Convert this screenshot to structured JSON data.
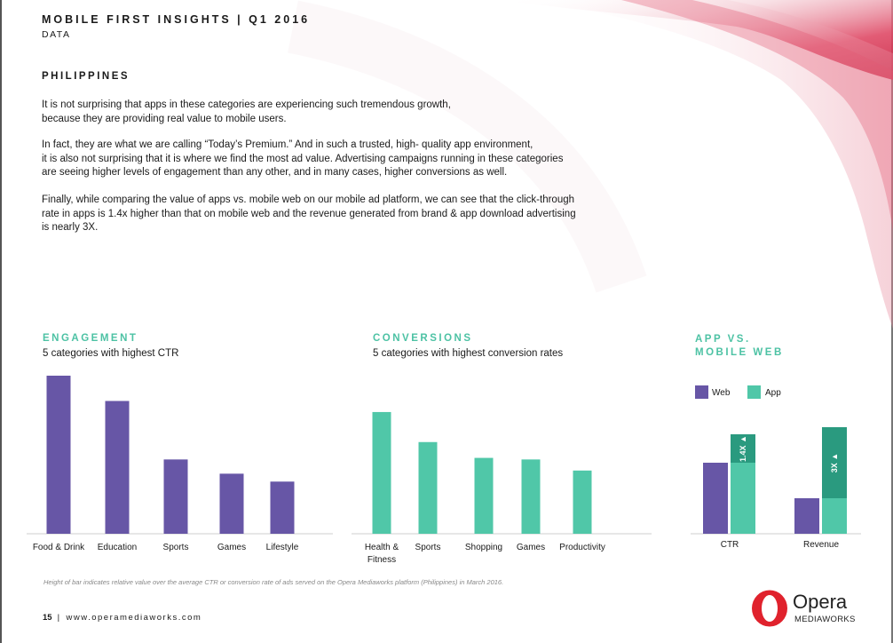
{
  "header": {
    "title": "MOBILE FIRST INSIGHTS | Q1 2016",
    "subtitle": "DATA"
  },
  "section": {
    "title": "PHILIPPINES"
  },
  "paragraphs": [
    [
      "It is not surprising that apps in these categories are experiencing such tremendous growth,",
      "because they are providing real value to mobile users."
    ],
    [
      "In fact, they are what we are calling “Today’s Premium.” And in such a trusted, high- quality app environment,",
      "it is also not surprising that it is where we find the most ad value. Advertising campaigns running in these categories",
      "are seeing higher levels of engagement than any other, and in many cases, higher conversions as well."
    ],
    [
      "Finally, while comparing the value of apps vs. mobile web on our mobile ad platform, we can see that the click-through",
      "rate in apps is 1.4x higher than that on mobile web and the revenue generated from brand & app download advertising",
      "is nearly 3X."
    ]
  ],
  "colors": {
    "purple": "#6756a6",
    "teal": "#50c7a8",
    "teal_dark": "#2a9a7f",
    "accent_red": "#d8304e"
  },
  "chart_data": [
    {
      "type": "bar",
      "title": "ENGAGEMENT",
      "subtitle": "5 categories with highest CTR",
      "categories": [
        "Food & Drink",
        "Education",
        "Sports",
        "Games",
        "Lifestyle"
      ],
      "values": [
        100,
        84,
        47,
        38,
        33
      ],
      "ylim": [
        0,
        100
      ],
      "color": "#6756a6"
    },
    {
      "type": "bar",
      "title": "CONVERSIONS",
      "subtitle": "5 categories with highest conversion rates",
      "categories": [
        "Health & Fitness",
        "Sports",
        "Shopping",
        "Games",
        "Productivity"
      ],
      "values": [
        77,
        58,
        48,
        47,
        40
      ],
      "ylim": [
        0,
        100
      ],
      "color": "#50c7a8"
    },
    {
      "type": "bar",
      "title": "APP VS. MOBILE WEB",
      "categories": [
        "CTR",
        "Revenue"
      ],
      "series": [
        {
          "name": "Web",
          "values": [
            1,
            1
          ]
        },
        {
          "name": "App",
          "values": [
            1.4,
            3
          ]
        }
      ],
      "annotations": [
        "1.4X ▲",
        "3X ▲"
      ],
      "legend": "top-left"
    }
  ],
  "footnote": "Height of bar indicates relative value over the average CTR or conversion rate of ads served on the Opera Mediaworks platform (Philippines) in March 2016.",
  "footer": {
    "page": "15",
    "separator": "|",
    "url": "www.operamediaworks.com"
  },
  "logo": {
    "name": "Opera",
    "tagline": "MEDIAWORKS"
  }
}
